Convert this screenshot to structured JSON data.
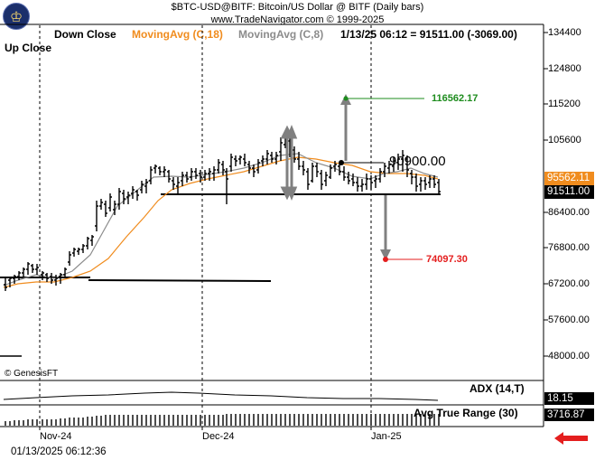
{
  "header": {
    "title": "$BTC-USD@BITF:  Bitcoin/US Dollar @ BITF  (Daily bars)",
    "subtitle": "www.TradeNavigator.com © 1999-2025",
    "logo_icon": "trade-navigator-logo-icon"
  },
  "legend": {
    "down_close": "Down Close",
    "moving_avg_18": "MovingAvg (C,18)",
    "moving_avg_8": "MovingAvg (C,8)",
    "bar_info": "1/13/25 06:12 = 91511.00 (-3069.00)",
    "up_close": "Up Close"
  },
  "colors": {
    "ma18": "#f08c1e",
    "ma8": "#8c8c8c",
    "target_up": "#1e8c1e",
    "target_down": "#e41e1e",
    "arrow": "#808080",
    "nav_arrow": "#e41e1e"
  },
  "price_axis": {
    "ticks": [
      "134400",
      "124800",
      "115200",
      "105600",
      "95562.11",
      "91511.00",
      "86400.00",
      "76800.00",
      "67200.00",
      "57600.00",
      "48000.00"
    ],
    "current_ma_box": "95562.11",
    "current_price_box": "91511.00"
  },
  "annotations": {
    "pivot_level": "90900.00",
    "target_up": "116562.17",
    "target_down": "74097.30"
  },
  "copyright": "© GenesisFT",
  "indicators": {
    "adx_label": "ADX (14,T)",
    "adx_value": "18.15",
    "atr_label": "Avg True Range (30)",
    "atr_value": "3716.87"
  },
  "x_axis": {
    "labels": [
      "Nov-24",
      "Dec-24",
      "Jan-25"
    ]
  },
  "status": {
    "timestamp": "01/13/2025 06:12:36",
    "nav_icon": "left-arrow-icon"
  }
}
